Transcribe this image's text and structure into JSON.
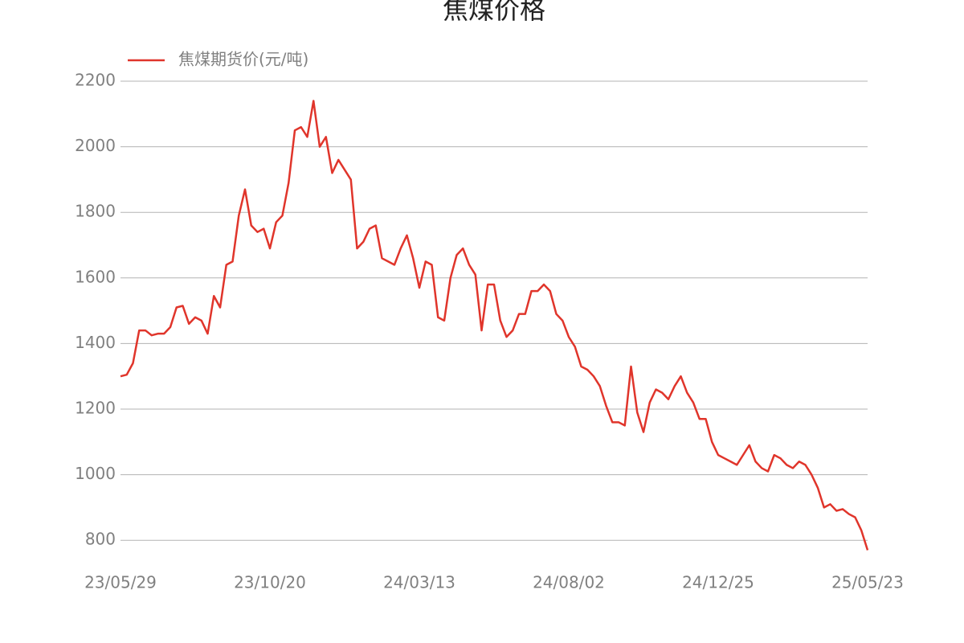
{
  "chart_data": {
    "type": "line",
    "title": "焦煤价格",
    "categories": [
      "23/05/29",
      null,
      null,
      null,
      null,
      null,
      null,
      null,
      null,
      null,
      null,
      null,
      null,
      null,
      null,
      null,
      null,
      null,
      null,
      null,
      null,
      null,
      null,
      null,
      "23/10/20",
      null,
      null,
      null,
      null,
      null,
      null,
      null,
      null,
      null,
      null,
      null,
      null,
      null,
      null,
      null,
      null,
      null,
      null,
      null,
      null,
      null,
      null,
      null,
      "24/03/13",
      null,
      null,
      null,
      null,
      null,
      null,
      null,
      null,
      null,
      null,
      null,
      null,
      null,
      null,
      null,
      null,
      null,
      null,
      null,
      null,
      null,
      null,
      null,
      "24/08/02",
      null,
      null,
      null,
      null,
      null,
      null,
      null,
      null,
      null,
      null,
      null,
      null,
      null,
      null,
      null,
      null,
      null,
      null,
      null,
      null,
      null,
      null,
      null,
      "24/12/25",
      null,
      null,
      null,
      null,
      null,
      null,
      null,
      null,
      null,
      null,
      null,
      null,
      null,
      null,
      null,
      null,
      null,
      null,
      null,
      null,
      null,
      null,
      null,
      "25/05/23"
    ],
    "series": [
      {
        "name": "焦煤期货价(元/吨)",
        "color": "#e0352b",
        "values": [
          1300,
          1305,
          1340,
          1440,
          1440,
          1425,
          1430,
          1430,
          1450,
          1510,
          1515,
          1460,
          1480,
          1470,
          1430,
          1545,
          1510,
          1640,
          1650,
          1790,
          1870,
          1760,
          1740,
          1750,
          1690,
          1770,
          1790,
          1890,
          2050,
          2060,
          2030,
          2140,
          2000,
          2030,
          1920,
          1960,
          1930,
          1900,
          1690,
          1710,
          1750,
          1760,
          1660,
          1650,
          1640,
          1690,
          1730,
          1660,
          1570,
          1650,
          1640,
          1480,
          1470,
          1600,
          1670,
          1690,
          1640,
          1610,
          1440,
          1580,
          1580,
          1470,
          1420,
          1440,
          1490,
          1490,
          1560,
          1560,
          1580,
          1560,
          1490,
          1470,
          1420,
          1390,
          1330,
          1320,
          1300,
          1270,
          1210,
          1160,
          1160,
          1150,
          1330,
          1190,
          1130,
          1220,
          1260,
          1250,
          1230,
          1270,
          1300,
          1250,
          1220,
          1170,
          1170,
          1100,
          1060,
          1050,
          1040,
          1030,
          1060,
          1090,
          1040,
          1020,
          1010,
          1060,
          1050,
          1030,
          1020,
          1040,
          1030,
          1000,
          960,
          900,
          910,
          890,
          895,
          880,
          870,
          830,
          770
        ]
      }
    ],
    "ylim": [
      750,
      2200
    ],
    "yticks": [
      800,
      1000,
      1200,
      1400,
      1600,
      1800,
      2000,
      2200
    ],
    "grid": true,
    "legend": "top-left"
  }
}
